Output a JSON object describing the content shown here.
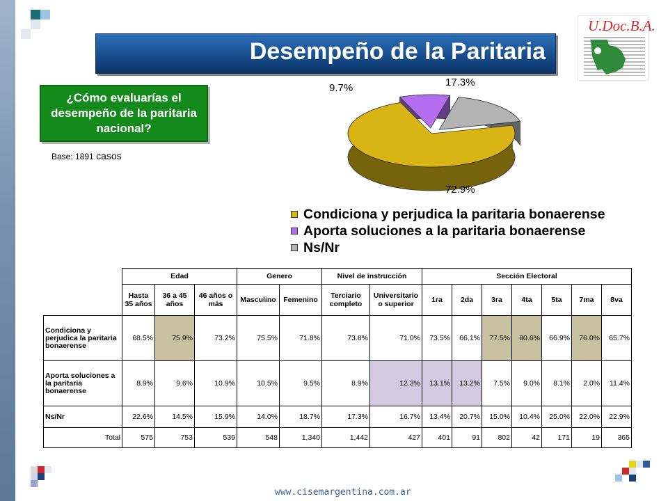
{
  "title": "Desempeño de la Paritaria",
  "logo_text": "U.Doc.B.A.",
  "question": "¿Cómo evaluarías el desempeño de la paritaria nacional?",
  "base": {
    "prefix": "Base: 1891",
    "suffix": "casos"
  },
  "footer_url": "www.cisemargentina.com.ar",
  "colors": {
    "gold": "#d8b414",
    "purple": "#b36ef0",
    "grey": "#b3b3b3",
    "question_bg": "#138a1b",
    "highlight_tan": "#c8c2a0",
    "highlight_lavender": "#d3c9e0"
  },
  "chart_data": {
    "type": "pie",
    "style": "3d",
    "slices": [
      {
        "label": "Condiciona y perjudica la paritaria bonaerense",
        "value": 72.9,
        "value_label": "72.9%",
        "color": "#d8b414"
      },
      {
        "label": "Aporta soluciones a la paritaria bonaerense",
        "value": 9.7,
        "value_label": "9.7%",
        "color": "#b36ef0"
      },
      {
        "label": "Ns/Nr",
        "value": 17.3,
        "value_label": "17.3%",
        "color": "#b3b3b3"
      }
    ],
    "legend_position": "bottom"
  },
  "table": {
    "groups": [
      {
        "label": "Edad",
        "span": 3
      },
      {
        "label": "Genero",
        "span": 2
      },
      {
        "label": "Nivel de instrucción",
        "span": 2
      },
      {
        "label": "Sección Electoral",
        "span": 7
      }
    ],
    "columns": [
      "Hasta 35 años",
      "36 a 45 años",
      "46 años o más",
      "Masculino",
      "Femenino",
      "Terciario completo",
      "Universitario o superior",
      "1ra",
      "2da",
      "3ra",
      "4ta",
      "5ta",
      "7ma",
      "8va"
    ],
    "rows": [
      {
        "label": "Condiciona y perjudica la paritaria bonaerense",
        "values": [
          "68.5%",
          "75.9%",
          "73.2%",
          "75.5%",
          "71.8%",
          "73.8%",
          "71.0%",
          "73.5%",
          "66.1%",
          "77.5%",
          "80.6%",
          "66.9%",
          "76.0%",
          "65.7%"
        ],
        "highlight": [
          1,
          9,
          10,
          12
        ]
      },
      {
        "label": "Aporta soluciones a la paritaria bonaerense",
        "values": [
          "8.9%",
          "9.6%",
          "10.9%",
          "10.5%",
          "9.5%",
          "8.9%",
          "12.3%",
          "13.1%",
          "13.2%",
          "7.5%",
          "9.0%",
          "8.1%",
          "2.0%",
          "11.4%"
        ],
        "highlight": [
          6,
          7,
          8
        ]
      },
      {
        "label": "Ns/Nr",
        "values": [
          "22.6%",
          "14.5%",
          "15.9%",
          "14.0%",
          "18.7%",
          "17.3%",
          "16.7%",
          "13.4%",
          "20.7%",
          "15.0%",
          "10.4%",
          "25.0%",
          "22.0%",
          "22.9%"
        ],
        "highlight": []
      }
    ],
    "total": {
      "label": "Total",
      "values": [
        "575",
        "753",
        "539",
        "548",
        "1,340",
        "1,442",
        "427",
        "401",
        "91",
        "802",
        "42",
        "171",
        "19",
        "365"
      ]
    }
  }
}
